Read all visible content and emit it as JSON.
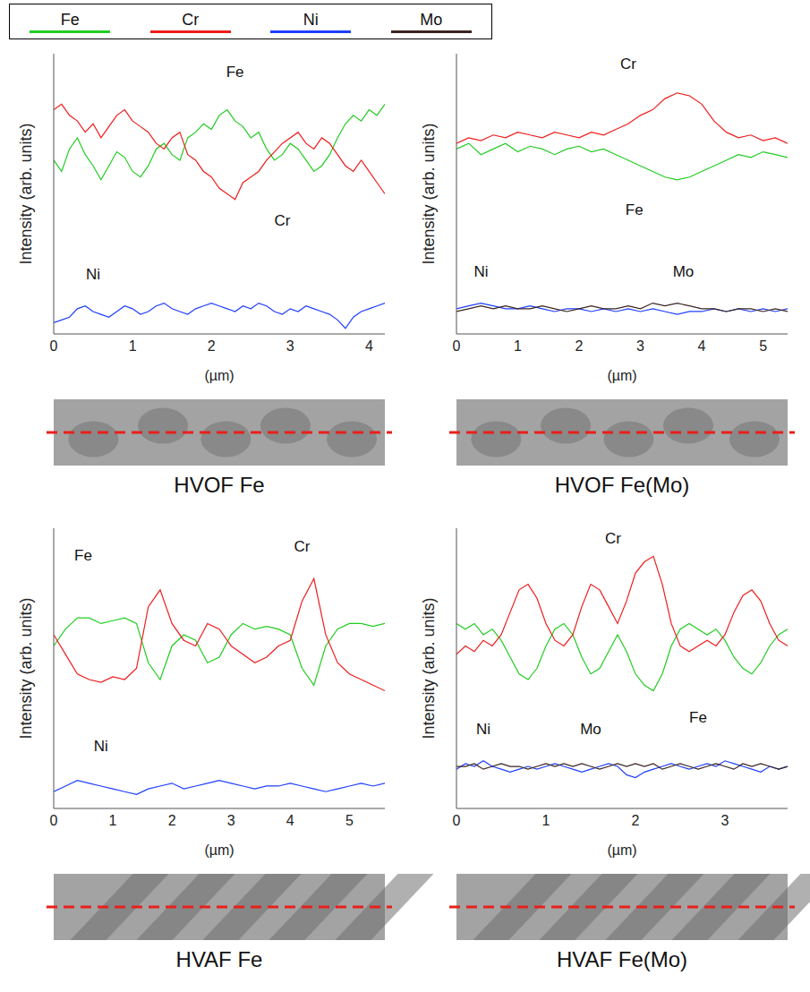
{
  "chart_data": [
    {
      "type": "line",
      "title": "HVOF Fe",
      "x_label": "(µm)",
      "y_label": "Intensity (arb. units)",
      "legend": "top",
      "grid": false,
      "tick_labels": "x",
      "xlim": [
        0,
        4.2
      ],
      "xticks": [
        0,
        1,
        2,
        3,
        4
      ],
      "ylim": [
        0,
        100
      ],
      "x": [
        0,
        0.1,
        0.2,
        0.3,
        0.4,
        0.5,
        0.6,
        0.7,
        0.8,
        0.9,
        1,
        1.1,
        1.2,
        1.3,
        1.4,
        1.5,
        1.6,
        1.7,
        1.8,
        1.9,
        2,
        2.1,
        2.2,
        2.3,
        2.4,
        2.5,
        2.6,
        2.7,
        2.8,
        2.9,
        3,
        3.1,
        3.2,
        3.3,
        3.4,
        3.5,
        3.6,
        3.7,
        3.8,
        3.9,
        4,
        4.1,
        4.2
      ],
      "series": [
        {
          "name": "Fe",
          "color": "#22cc22",
          "values": [
            62,
            58,
            66,
            70,
            64,
            60,
            55,
            60,
            65,
            63,
            58,
            56,
            60,
            66,
            68,
            64,
            62,
            70,
            72,
            75,
            73,
            78,
            80,
            76,
            74,
            70,
            72,
            66,
            62,
            64,
            68,
            66,
            62,
            58,
            60,
            64,
            70,
            75,
            78,
            76,
            80,
            78,
            82
          ]
        },
        {
          "name": "Cr",
          "color": "#ee1c1c",
          "values": [
            80,
            82,
            78,
            76,
            72,
            75,
            70,
            74,
            78,
            80,
            76,
            74,
            72,
            68,
            66,
            70,
            72,
            64,
            62,
            58,
            56,
            52,
            50,
            48,
            54,
            56,
            58,
            62,
            65,
            68,
            70,
            72,
            68,
            66,
            70,
            68,
            64,
            60,
            58,
            62,
            58,
            54,
            50
          ]
        },
        {
          "name": "Ni",
          "color": "#1f3fff",
          "values": [
            4,
            5,
            6,
            9,
            10,
            8,
            7,
            6,
            8,
            10,
            9,
            7,
            8,
            10,
            11,
            9,
            8,
            7,
            9,
            10,
            11,
            10,
            9,
            8,
            10,
            9,
            11,
            10,
            8,
            7,
            9,
            8,
            10,
            9,
            8,
            7,
            5,
            2,
            6,
            8,
            9,
            10,
            11
          ]
        }
      ],
      "annotations": [
        {
          "text": "Fe",
          "x": 2.3,
          "y": 93
        },
        {
          "text": "Cr",
          "x": 2.9,
          "y": 40
        },
        {
          "text": "Ni",
          "x": 0.5,
          "y": 21
        }
      ]
    },
    {
      "type": "line",
      "title": "HVOF Fe(Mo)",
      "x_label": "(µm)",
      "y_label": "Intensity (arb. units)",
      "legend": "top",
      "grid": false,
      "tick_labels": "x",
      "xlim": [
        0,
        5.4
      ],
      "xticks": [
        0,
        1,
        2,
        3,
        4,
        5
      ],
      "ylim": [
        0,
        100
      ],
      "x": [
        0,
        0.2,
        0.4,
        0.6,
        0.8,
        1,
        1.2,
        1.4,
        1.6,
        1.8,
        2,
        2.2,
        2.4,
        2.6,
        2.8,
        3,
        3.2,
        3.4,
        3.6,
        3.8,
        4,
        4.2,
        4.4,
        4.6,
        4.8,
        5,
        5.2,
        5.4
      ],
      "series": [
        {
          "name": "Fe",
          "color": "#22cc22",
          "values": [
            66,
            68,
            64,
            66,
            68,
            65,
            67,
            66,
            64,
            66,
            67,
            65,
            66,
            64,
            62,
            60,
            58,
            56,
            55,
            56,
            58,
            60,
            62,
            64,
            63,
            65,
            64,
            63
          ]
        },
        {
          "name": "Cr",
          "color": "#ee1c1c",
          "values": [
            68,
            70,
            69,
            71,
            70,
            72,
            71,
            70,
            72,
            71,
            70,
            72,
            71,
            73,
            75,
            78,
            80,
            84,
            86,
            85,
            82,
            76,
            72,
            70,
            71,
            69,
            70,
            68
          ]
        },
        {
          "name": "Ni",
          "color": "#1f3fff",
          "values": [
            9,
            10,
            11,
            10,
            9,
            9,
            10,
            9,
            8,
            9,
            9,
            8,
            9,
            8,
            9,
            8,
            9,
            8,
            7,
            8,
            8,
            9,
            8,
            9,
            8,
            9,
            8,
            9
          ]
        },
        {
          "name": "Mo",
          "color": "#3a2420",
          "values": [
            8,
            9,
            10,
            9,
            10,
            9,
            9,
            10,
            9,
            8,
            9,
            10,
            9,
            9,
            10,
            9,
            11,
            10,
            11,
            10,
            9,
            9,
            8,
            9,
            9,
            8,
            9,
            8
          ]
        }
      ],
      "annotations": [
        {
          "text": "Cr",
          "x": 2.8,
          "y": 96
        },
        {
          "text": "Fe",
          "x": 2.9,
          "y": 44
        },
        {
          "text": "Ni",
          "x": 0.4,
          "y": 22
        },
        {
          "text": "Mo",
          "x": 3.7,
          "y": 22
        }
      ]
    },
    {
      "type": "line",
      "title": "HVAF Fe",
      "x_label": "(µm)",
      "y_label": "Intensity (arb. units)",
      "legend": "top",
      "grid": false,
      "tick_labels": "x",
      "xlim": [
        0,
        5.6
      ],
      "xticks": [
        0,
        1,
        2,
        3,
        4,
        5
      ],
      "ylim": [
        0,
        100
      ],
      "x": [
        0,
        0.2,
        0.4,
        0.6,
        0.8,
        1,
        1.2,
        1.4,
        1.6,
        1.8,
        2,
        2.2,
        2.4,
        2.6,
        2.8,
        3,
        3.2,
        3.4,
        3.6,
        3.8,
        4,
        4.2,
        4.4,
        4.6,
        4.8,
        5,
        5.2,
        5.4,
        5.6
      ],
      "series": [
        {
          "name": "Fe",
          "color": "#22cc22",
          "values": [
            58,
            64,
            68,
            68,
            66,
            67,
            68,
            66,
            52,
            46,
            58,
            62,
            60,
            52,
            54,
            62,
            66,
            64,
            65,
            64,
            62,
            50,
            44,
            58,
            64,
            66,
            66,
            65,
            66
          ]
        },
        {
          "name": "Cr",
          "color": "#ee1c1c",
          "values": [
            62,
            55,
            48,
            46,
            45,
            47,
            46,
            50,
            72,
            78,
            66,
            60,
            58,
            66,
            64,
            58,
            55,
            52,
            54,
            58,
            60,
            74,
            82,
            62,
            52,
            48,
            46,
            44,
            42
          ]
        },
        {
          "name": "Ni",
          "color": "#1f3fff",
          "values": [
            6,
            8,
            10,
            9,
            8,
            7,
            6,
            5,
            7,
            8,
            9,
            7,
            8,
            9,
            10,
            9,
            8,
            7,
            8,
            8,
            9,
            8,
            7,
            6,
            7,
            8,
            9,
            8,
            9
          ]
        }
      ],
      "annotations": [
        {
          "text": "Fe",
          "x": 0.5,
          "y": 90
        },
        {
          "text": "Cr",
          "x": 4.2,
          "y": 93
        },
        {
          "text": "Ni",
          "x": 0.8,
          "y": 22
        }
      ]
    },
    {
      "type": "line",
      "title": "HVAF Fe(Mo)",
      "x_label": "(µm)",
      "y_label": "Intensity (arb. units)",
      "legend": "top",
      "grid": false,
      "tick_labels": "x",
      "xlim": [
        0,
        3.7
      ],
      "xticks": [
        0,
        1,
        2,
        3
      ],
      "ylim": [
        0,
        100
      ],
      "x": [
        0,
        0.1,
        0.2,
        0.3,
        0.4,
        0.5,
        0.6,
        0.7,
        0.8,
        0.9,
        1,
        1.1,
        1.2,
        1.3,
        1.4,
        1.5,
        1.6,
        1.7,
        1.8,
        1.9,
        2,
        2.1,
        2.2,
        2.3,
        2.4,
        2.5,
        2.6,
        2.7,
        2.8,
        2.9,
        3,
        3.1,
        3.2,
        3.3,
        3.4,
        3.5,
        3.6,
        3.7
      ],
      "series": [
        {
          "name": "Fe",
          "color": "#22cc22",
          "values": [
            66,
            64,
            66,
            62,
            64,
            60,
            54,
            48,
            46,
            50,
            58,
            64,
            66,
            62,
            54,
            48,
            50,
            56,
            62,
            56,
            48,
            44,
            42,
            48,
            58,
            64,
            66,
            64,
            62,
            64,
            60,
            54,
            50,
            48,
            52,
            58,
            62,
            64
          ]
        },
        {
          "name": "Cr",
          "color": "#ee1c1c",
          "values": [
            55,
            58,
            56,
            60,
            58,
            62,
            70,
            78,
            80,
            75,
            66,
            60,
            58,
            62,
            72,
            80,
            78,
            72,
            66,
            74,
            84,
            88,
            90,
            80,
            66,
            58,
            56,
            58,
            60,
            58,
            62,
            70,
            76,
            78,
            74,
            66,
            60,
            58
          ]
        },
        {
          "name": "Ni",
          "color": "#1f3fff",
          "values": [
            14,
            16,
            15,
            17,
            15,
            14,
            13,
            14,
            15,
            14,
            15,
            16,
            15,
            14,
            13,
            14,
            15,
            16,
            15,
            12,
            11,
            13,
            14,
            15,
            16,
            15,
            14,
            15,
            16,
            15,
            17,
            16,
            15,
            14,
            13,
            15,
            14,
            15
          ]
        },
        {
          "name": "Mo",
          "color": "#3a2420",
          "values": [
            15,
            15,
            16,
            14,
            15,
            16,
            15,
            15,
            14,
            15,
            16,
            15,
            16,
            15,
            16,
            15,
            14,
            15,
            16,
            15,
            16,
            15,
            16,
            14,
            15,
            16,
            15,
            14,
            15,
            16,
            15,
            14,
            16,
            15,
            16,
            15,
            14,
            15
          ]
        }
      ],
      "annotations": [
        {
          "text": "Cr",
          "x": 1.75,
          "y": 96
        },
        {
          "text": "Fe",
          "x": 2.7,
          "y": 32
        },
        {
          "text": "Ni",
          "x": 0.3,
          "y": 28
        },
        {
          "text": "Mo",
          "x": 1.5,
          "y": 28
        }
      ]
    }
  ]
}
